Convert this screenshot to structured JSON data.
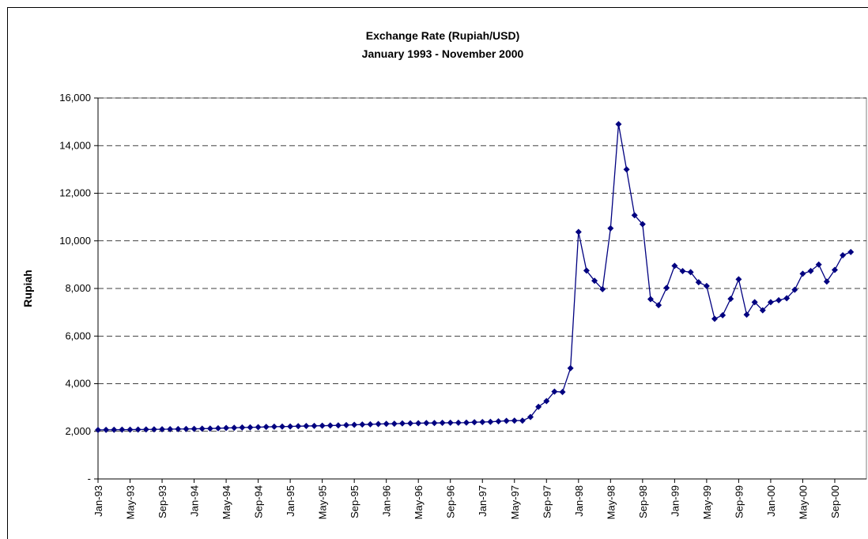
{
  "chart_data": {
    "type": "line",
    "title": "Exchange Rate (Rupiah/USD)",
    "subtitle": "January 1993 - November 2000",
    "y_label": "Rupiah",
    "categories": [
      "Jan-93",
      null,
      null,
      null,
      "May-93",
      null,
      null,
      null,
      "Sep-93",
      null,
      null,
      null,
      "Jan-94",
      null,
      null,
      null,
      "May-94",
      null,
      null,
      null,
      "Sep-94",
      null,
      null,
      null,
      "Jan-95",
      null,
      null,
      null,
      "May-95",
      null,
      null,
      null,
      "Sep-95",
      null,
      null,
      null,
      "Jan-96",
      null,
      null,
      null,
      "May-96",
      null,
      null,
      null,
      "Sep-96",
      null,
      null,
      null,
      "Jan-97",
      null,
      null,
      null,
      "May-97",
      null,
      null,
      null,
      "Sep-97",
      null,
      null,
      null,
      "Jan-98",
      null,
      null,
      null,
      "May-98",
      null,
      null,
      null,
      "Sep-98",
      null,
      null,
      null,
      "Jan-99",
      null,
      null,
      null,
      "May-99",
      null,
      null,
      null,
      "Sep-99",
      null,
      null,
      null,
      "Jan-00",
      null,
      null,
      null,
      "May-00",
      null,
      null,
      null,
      "Sep-00",
      null,
      null
    ],
    "values": [
      2060,
      2063,
      2066,
      2069,
      2072,
      2076,
      2079,
      2083,
      2087,
      2091,
      2095,
      2100,
      2105,
      2110,
      2118,
      2127,
      2140,
      2150,
      2160,
      2167,
      2175,
      2185,
      2195,
      2200,
      2205,
      2215,
      2222,
      2230,
      2235,
      2243,
      2250,
      2262,
      2274,
      2285,
      2293,
      2308,
      2315,
      2320,
      2330,
      2336,
      2342,
      2348,
      2350,
      2355,
      2360,
      2362,
      2365,
      2383,
      2390,
      2400,
      2420,
      2440,
      2450,
      2450,
      2600,
      3030,
      3270,
      3670,
      3650,
      4650,
      10375,
      8750,
      8325,
      7970,
      10525,
      14900,
      13000,
      11075,
      10700,
      7550,
      7300,
      8025,
      8950,
      8730,
      8685,
      8260,
      8105,
      6726,
      6875,
      7565,
      8386,
      6900,
      7425,
      7085,
      7425,
      7505,
      7590,
      7945,
      8620,
      8735,
      9003,
      8290,
      8780,
      9395,
      9530
    ],
    "color": "#000080",
    "ylim": [
      0,
      16000
    ],
    "yticks": [
      {
        "value": 0,
        "label": "-"
      },
      {
        "value": 2000,
        "label": "2,000"
      },
      {
        "value": 4000,
        "label": "4,000"
      },
      {
        "value": 6000,
        "label": "6,000"
      },
      {
        "value": 8000,
        "label": "8,000"
      },
      {
        "value": 10000,
        "label": "10,000"
      },
      {
        "value": 12000,
        "label": "12,000"
      },
      {
        "value": 14000,
        "label": "14,000"
      },
      {
        "value": 16000,
        "label": "16,000"
      }
    ],
    "grid": true
  }
}
